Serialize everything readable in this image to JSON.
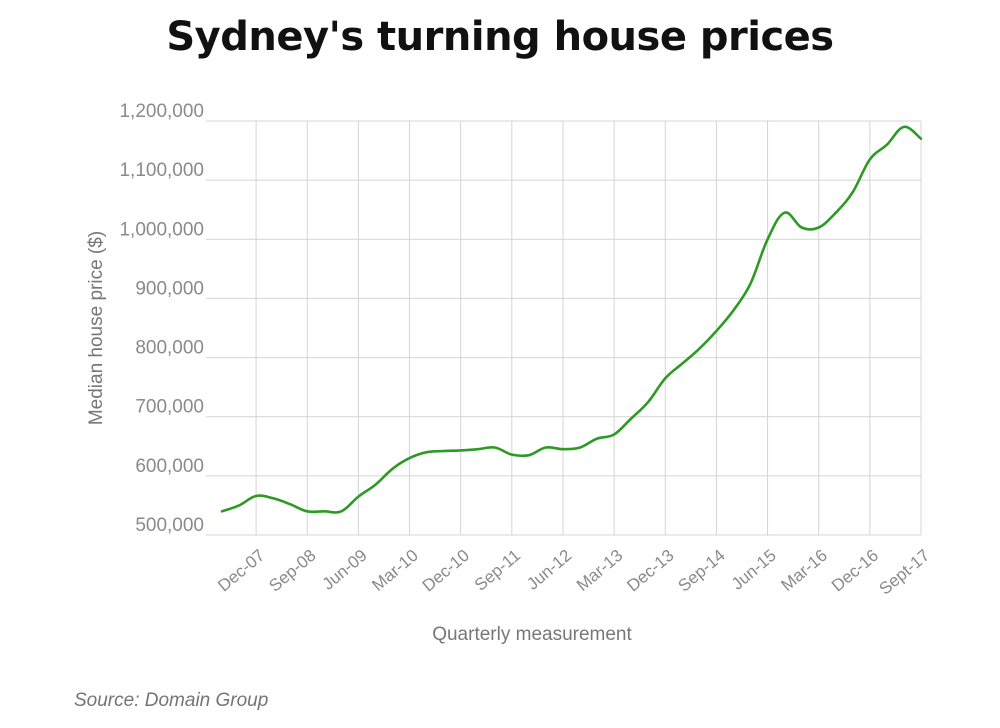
{
  "chart_data": {
    "type": "line",
    "title": "Sydney's turning house prices",
    "xlabel": "Quarterly measurement",
    "ylabel": "Median house price ($)",
    "source": "Source: Domain Group",
    "ylim": [
      500000,
      1200000
    ],
    "y_ticks": [
      {
        "value": 500000,
        "label": "500,000"
      },
      {
        "value": 600000,
        "label": "600,000"
      },
      {
        "value": 700000,
        "label": "700,000"
      },
      {
        "value": 800000,
        "label": "800,000"
      },
      {
        "value": 900000,
        "label": "900,000"
      },
      {
        "value": 1000000,
        "label": "1,000,000"
      },
      {
        "value": 1100000,
        "label": "1,100,000"
      },
      {
        "value": 1200000,
        "label": "1,200,000"
      }
    ],
    "x_ticks": [
      "Dec-07",
      "Sep-08",
      "Jun-09",
      "Mar-10",
      "Dec-10",
      "Sep-11",
      "Jun-12",
      "Mar-13",
      "Dec-13",
      "Sep-14",
      "Jun-15",
      "Mar-16",
      "Dec-16",
      "Sept-17"
    ],
    "grid": true,
    "line_color": "#2e9a25",
    "series": [
      {
        "x": [
          "Jun-07",
          "Sep-07",
          "Dec-07",
          "Mar-08",
          "Jun-08",
          "Sep-08",
          "Dec-08",
          "Mar-09",
          "Jun-09",
          "Sep-09",
          "Dec-09",
          "Mar-10",
          "Jun-10",
          "Sep-10",
          "Dec-10",
          "Mar-11",
          "Jun-11",
          "Sep-11",
          "Dec-11",
          "Mar-12",
          "Jun-12",
          "Sep-12",
          "Dec-12",
          "Mar-13",
          "Jun-13",
          "Sep-13",
          "Dec-13",
          "Mar-14",
          "Jun-14",
          "Sep-14",
          "Dec-14",
          "Mar-15",
          "Jun-15",
          "Sep-15",
          "Dec-15",
          "Mar-16",
          "Jun-16",
          "Sep-16",
          "Dec-16",
          "Mar-17",
          "Jun-17",
          "Sept-17"
        ],
        "values": [
          540000,
          550000,
          566000,
          562000,
          552000,
          540000,
          540000,
          540000,
          565000,
          585000,
          612000,
          630000,
          640000,
          642000,
          643000,
          645000,
          648000,
          636000,
          635000,
          648000,
          645000,
          648000,
          663000,
          670000,
          697000,
          725000,
          765000,
          790000,
          815000,
          845000,
          880000,
          925000,
          1000000,
          1045000,
          1020000,
          1020000,
          1045000,
          1080000,
          1135000,
          1160000,
          1190000,
          1170000
        ]
      }
    ]
  }
}
